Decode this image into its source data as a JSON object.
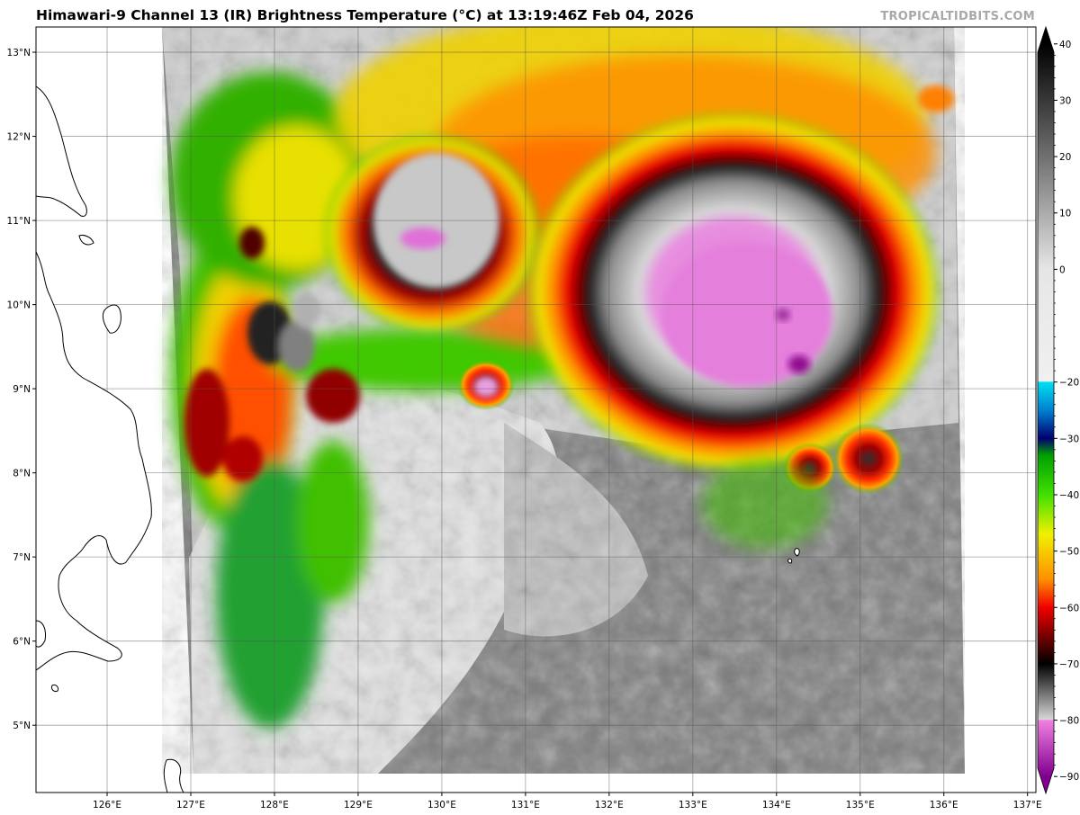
{
  "header": {
    "title": "Himawari-9 Channel 13 (IR) Brightness Temperature (°C) at 13:19:46Z Feb 04, 2026",
    "credit": "TROPICALTIDBITS.COM"
  },
  "map": {
    "lat_labels": [
      "13°N",
      "12°N",
      "11°N",
      "10°N",
      "9°N",
      "8°N",
      "7°N",
      "6°N",
      "5°N"
    ],
    "lon_labels": [
      "126°E",
      "127°E",
      "128°E",
      "129°E",
      "130°E",
      "131°E",
      "132°E",
      "133°E",
      "134°E",
      "135°E",
      "136°E",
      "137°E"
    ],
    "lat_range": [
      4.2,
      13.3
    ],
    "lon_range": [
      125.15,
      137.1
    ],
    "features": [
      "large convective storm centered near 9.9°N 133.7°E",
      "convective cluster near 10.8°N 130.4°E",
      "Mindanao / eastern Philippines coastline at left"
    ]
  },
  "colorbar": {
    "ticks": [
      "40",
      "30",
      "20",
      "10",
      "0",
      "−20",
      "−30",
      "−40",
      "−50",
      "−60",
      "−70",
      "−80",
      "−90"
    ],
    "tick_values": [
      40,
      30,
      20,
      10,
      0,
      -20,
      -30,
      -40,
      -50,
      -60,
      -70,
      -80,
      -90
    ],
    "range": [
      -93,
      43
    ],
    "units": "°C",
    "stops": [
      {
        "v": 40,
        "c": "#000000"
      },
      {
        "v": 20,
        "c": "#707070"
      },
      {
        "v": 0,
        "c": "#e6e6e6"
      },
      {
        "v": -19.9,
        "c": "#f0f0f0"
      },
      {
        "v": -20,
        "c": "#00e0f0"
      },
      {
        "v": -25,
        "c": "#0080d0"
      },
      {
        "v": -30,
        "c": "#000070"
      },
      {
        "v": -33,
        "c": "#00a000"
      },
      {
        "v": -40,
        "c": "#40e000"
      },
      {
        "v": -47,
        "c": "#f0f000"
      },
      {
        "v": -55,
        "c": "#ff9000"
      },
      {
        "v": -60,
        "c": "#f00000"
      },
      {
        "v": -66,
        "c": "#600000"
      },
      {
        "v": -70,
        "c": "#000000"
      },
      {
        "v": -79.9,
        "c": "#d8d8d8"
      },
      {
        "v": -80,
        "c": "#f080e0"
      },
      {
        "v": -90,
        "c": "#800090"
      }
    ]
  }
}
